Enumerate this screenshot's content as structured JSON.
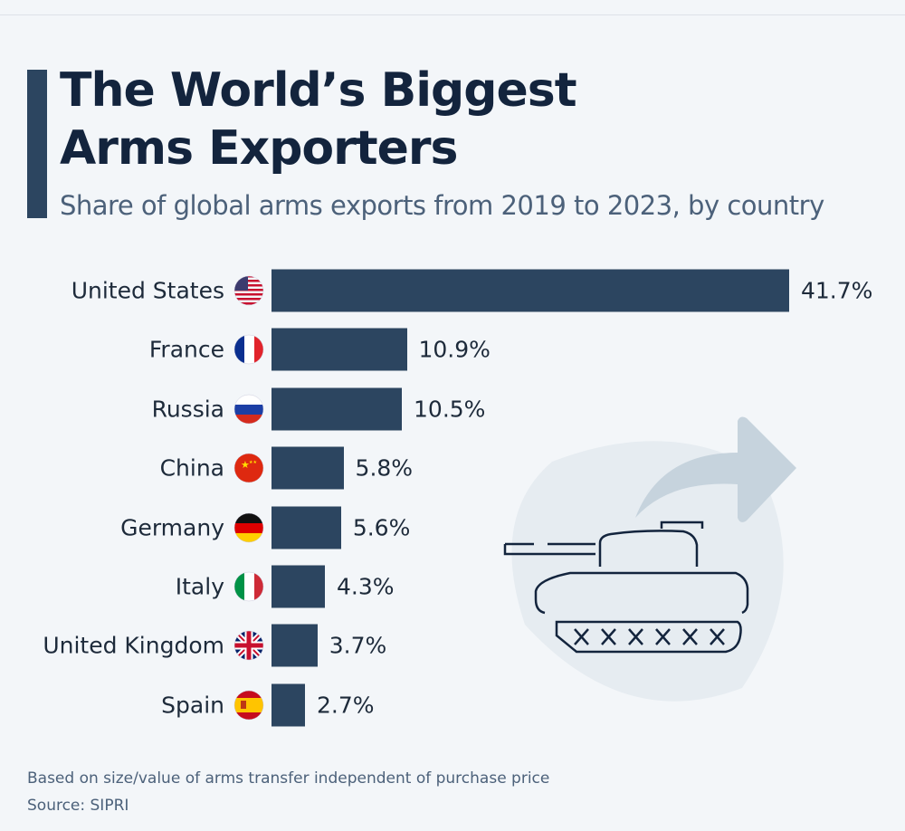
{
  "title": "The World’s Biggest Arms Exporters",
  "subtitle": "Share of global arms exports from 2019 to 2023, by country",
  "footnote": "Based on size/value of arms transfer independent of purchase price",
  "source": "Source: SIPRI",
  "chart_data": {
    "type": "bar",
    "orientation": "horizontal",
    "title": "The World’s Biggest Arms Exporters",
    "subtitle": "Share of global arms exports from 2019 to 2023, by country",
    "categories": [
      "United States",
      "France",
      "Russia",
      "China",
      "Germany",
      "Italy",
      "United Kingdom",
      "Spain"
    ],
    "values": [
      41.7,
      10.9,
      10.5,
      5.8,
      5.6,
      4.3,
      3.7,
      2.7
    ],
    "value_labels": [
      "41.7%",
      "10.9%",
      "10.5%",
      "5.8%",
      "5.6%",
      "4.3%",
      "3.7%",
      "2.7%"
    ],
    "flags": [
      "us-flag-icon",
      "france-flag-icon",
      "russia-flag-icon",
      "china-flag-icon",
      "germany-flag-icon",
      "italy-flag-icon",
      "uk-flag-icon",
      "spain-flag-icon"
    ],
    "unit": "%",
    "grid": false,
    "bar_color": "#2c4560"
  }
}
